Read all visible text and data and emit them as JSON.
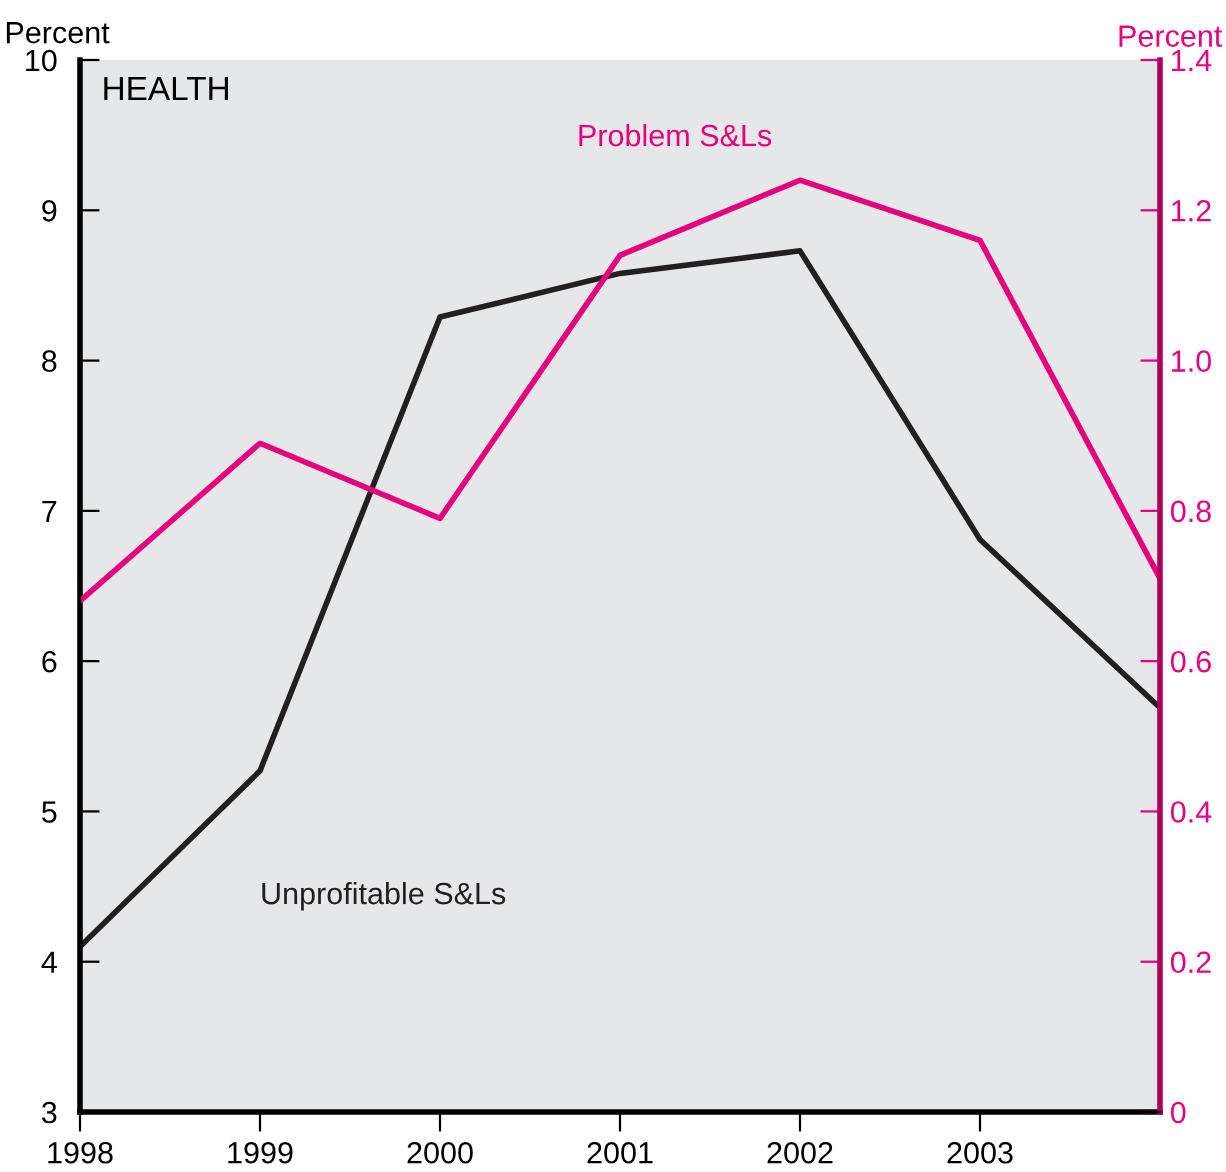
{
  "chart_data": {
    "type": "line",
    "ylabel": "Percent",
    "y2label": "Percent",
    "annotations": [
      "HEALTH"
    ],
    "x": [
      1998,
      1999,
      2000,
      2001,
      2002,
      2003,
      2004
    ],
    "series": [
      {
        "name": "Unprofitable S&Ls",
        "color": "#231f20",
        "values": [
          4.1,
          5.27,
          8.29,
          8.58,
          8.73,
          6.81,
          5.69
        ]
      },
      {
        "name": "Problem S&Ls",
        "color": "#e6007e",
        "axis": "y2",
        "values": [
          0.68,
          0.89,
          0.79,
          1.14,
          1.24,
          1.16,
          0.71
        ]
      }
    ],
    "xlim": [
      1998,
      2004
    ],
    "xticks": [
      1998,
      1999,
      2000,
      2001,
      2002,
      2003
    ],
    "ylim": [
      3,
      10
    ],
    "yticks": [
      3,
      4,
      5,
      6,
      7,
      8,
      9,
      10
    ],
    "y2lim": [
      0,
      1.4
    ],
    "y2ticks": [
      0,
      {
        "value": 0.2,
        "label": "0.2"
      },
      {
        "value": 0.4,
        "label": "0.4"
      },
      {
        "value": 0.6,
        "label": "0.6"
      },
      {
        "value": 0.8,
        "label": "0.8"
      },
      {
        "value": 1.0,
        "label": "1.0"
      },
      {
        "value": 1.2,
        "label": "1.2"
      },
      {
        "value": 1.4,
        "label": "1.4"
      }
    ],
    "grid": false,
    "legend": false,
    "marker": "none",
    "line_style": "solid"
  }
}
